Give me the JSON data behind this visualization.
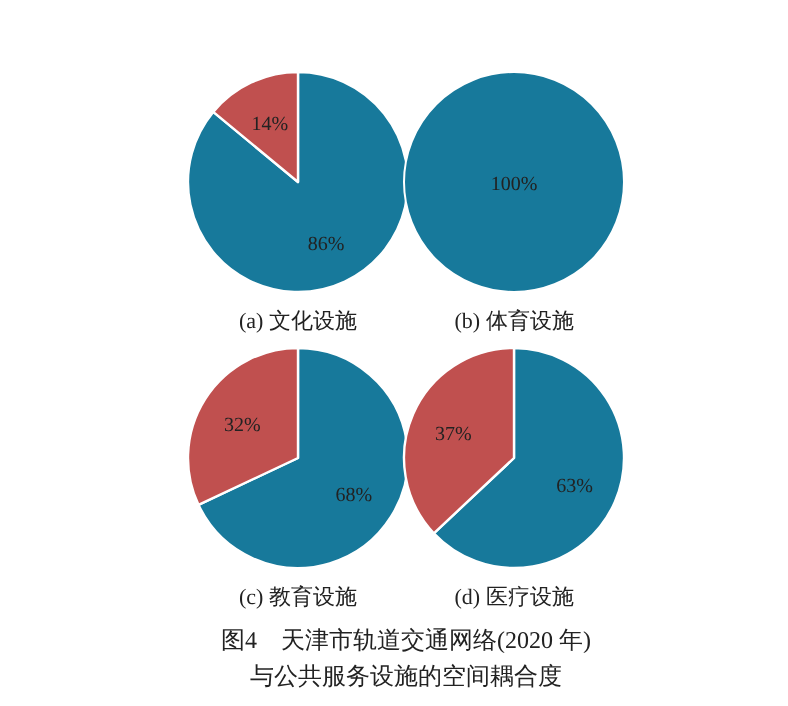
{
  "chart_data": [
    {
      "type": "pie",
      "title": "(a) 文化设施",
      "categories": [
        null,
        null
      ],
      "values": [
        86,
        14
      ],
      "colors": [
        "#17799b",
        "#c0504f"
      ],
      "value_labels": [
        "86%",
        "14%"
      ]
    },
    {
      "type": "pie",
      "title": "(b) 体育设施",
      "categories": [
        null
      ],
      "values": [
        100
      ],
      "colors": [
        "#17799b"
      ],
      "value_labels": [
        "100%"
      ]
    },
    {
      "type": "pie",
      "title": "(c) 教育设施",
      "categories": [
        null,
        null
      ],
      "values": [
        68,
        32
      ],
      "colors": [
        "#17799b",
        "#c0504f"
      ],
      "value_labels": [
        "68%",
        "32%"
      ]
    },
    {
      "type": "pie",
      "title": "(d) 医疗设施",
      "categories": [
        null,
        null
      ],
      "values": [
        63,
        37
      ],
      "colors": [
        "#17799b",
        "#c0504f"
      ],
      "value_labels": [
        "63%",
        "37%"
      ],
      "annotations": [
        "图4　天津市轨道交通网络(2020 年)",
        "与公共服务设施的空间耦合度"
      ]
    }
  ]
}
